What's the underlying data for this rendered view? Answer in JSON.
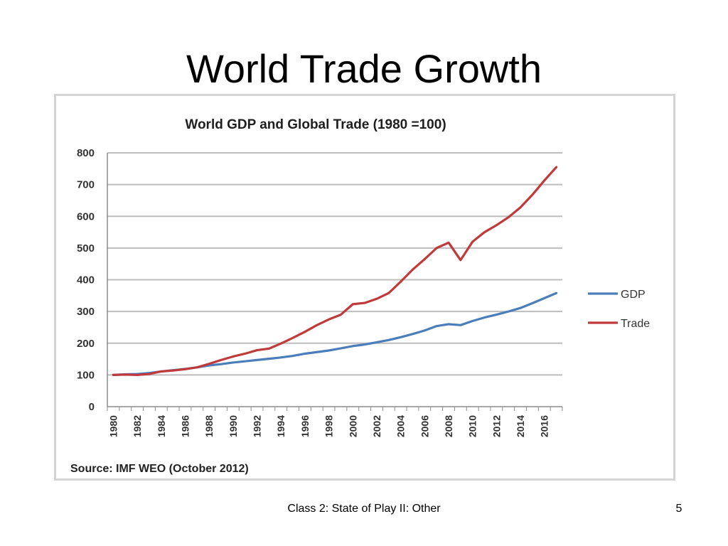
{
  "slide": {
    "title": "World Trade Growth",
    "footer": "Class 2:  State of Play II:  Other",
    "page_number": "5"
  },
  "chart_data": {
    "type": "line",
    "title": "World GDP and Global Trade (1980 =100)",
    "source": "Source: IMF WEO (October 2012)",
    "xlabel": "",
    "ylabel": "",
    "ylim": [
      0,
      800
    ],
    "yticks": [
      0,
      100,
      200,
      300,
      400,
      500,
      600,
      700,
      800
    ],
    "grid": true,
    "legend_position": "right",
    "x": [
      1980,
      1981,
      1982,
      1983,
      1984,
      1985,
      1986,
      1987,
      1988,
      1989,
      1990,
      1991,
      1992,
      1993,
      1994,
      1995,
      1996,
      1997,
      1998,
      1999,
      2000,
      2001,
      2002,
      2003,
      2004,
      2005,
      2006,
      2007,
      2008,
      2009,
      2010,
      2011,
      2012,
      2013,
      2014,
      2015,
      2016,
      2017
    ],
    "xtick_labels": [
      "1980",
      "1982",
      "1984",
      "1986",
      "1988",
      "1990",
      "1992",
      "1994",
      "1996",
      "1998",
      "2000",
      "2002",
      "2004",
      "2006",
      "2008",
      "2010",
      "2012",
      "2014",
      "2016"
    ],
    "series": [
      {
        "name": "GDP",
        "color": "#4a7ebb",
        "values": [
          100,
          102,
          103,
          106,
          111,
          115,
          119,
          124,
          130,
          134,
          139,
          143,
          147,
          151,
          155,
          160,
          167,
          172,
          177,
          184,
          191,
          196,
          203,
          210,
          219,
          229,
          240,
          254,
          260,
          257,
          270,
          281,
          290,
          300,
          311,
          326,
          342,
          358
        ]
      },
      {
        "name": "Trade",
        "color": "#c0393b",
        "values": [
          100,
          101,
          100,
          103,
          111,
          114,
          118,
          124,
          135,
          147,
          158,
          167,
          178,
          183,
          199,
          217,
          236,
          257,
          275,
          290,
          323,
          327,
          340,
          358,
          394,
          432,
          465,
          500,
          517,
          462,
          520,
          550,
          572,
          597,
          628,
          668,
          713,
          755
        ]
      }
    ]
  }
}
